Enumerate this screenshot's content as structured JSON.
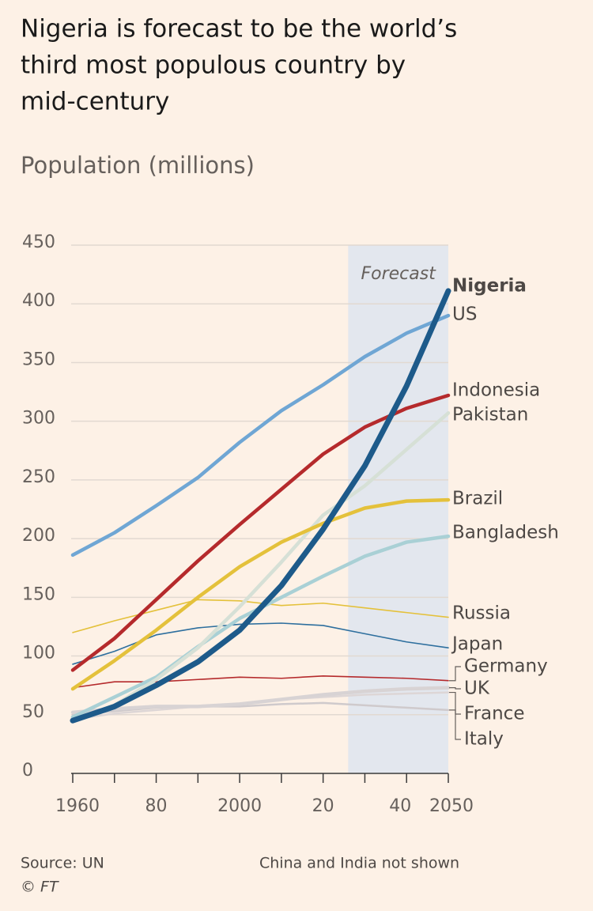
{
  "chart_data": {
    "type": "line",
    "title_lines": [
      "Nigeria is forecast to be the world’s",
      "third most populous country by",
      "mid-century"
    ],
    "subtitle": "Population (millions)",
    "x": [
      1960,
      1970,
      1980,
      1990,
      2000,
      2010,
      2020,
      2030,
      2040,
      2050
    ],
    "series": [
      {
        "name": "Nigeria",
        "color": "#1d5a8a",
        "values": [
          45,
          57,
          75,
          95,
          122,
          160,
          208,
          262,
          330,
          411
        ]
      },
      {
        "name": "US",
        "color": "#6fa6d4",
        "values": [
          186,
          205,
          228,
          252,
          282,
          309,
          331,
          355,
          375,
          390
        ]
      },
      {
        "name": "Indonesia",
        "color": "#b52a2c",
        "values": [
          88,
          115,
          148,
          181,
          212,
          242,
          272,
          295,
          311,
          322
        ]
      },
      {
        "name": "Pakistan",
        "color": "#d6e0d6",
        "values": [
          45,
          58,
          80,
          107,
          142,
          180,
          220,
          245,
          276,
          307
        ]
      },
      {
        "name": "Brazil",
        "color": "#e4c13b",
        "values": [
          72,
          96,
          122,
          150,
          176,
          197,
          213,
          226,
          232,
          233
        ]
      },
      {
        "name": "Bangladesh",
        "color": "#a9d0d5",
        "values": [
          48,
          65,
          82,
          108,
          132,
          150,
          168,
          185,
          197,
          202
        ]
      },
      {
        "name": "Russia",
        "color": "#e4c13b",
        "values": [
          120,
          130,
          139,
          148,
          147,
          143,
          145,
          141,
          137,
          133
        ]
      },
      {
        "name": "Japan",
        "color": "#2e6f9e",
        "values": [
          93,
          104,
          118,
          124,
          127,
          128,
          126,
          119,
          112,
          107
        ]
      },
      {
        "name": "Germany",
        "color": "#b52a2c",
        "values": [
          73,
          78,
          78,
          80,
          82,
          81,
          83,
          82,
          81,
          79
        ]
      },
      {
        "name": "UK",
        "color": "#d8d3d4",
        "values": [
          52,
          55,
          57,
          57,
          59,
          63,
          67,
          70,
          72,
          73
        ]
      },
      {
        "name": "France",
        "color": "#ddd6d6",
        "values": [
          46,
          51,
          54,
          57,
          59,
          63,
          65,
          67,
          68,
          69
        ]
      },
      {
        "name": "Italy",
        "color": "#cfcacc",
        "values": [
          50,
          53,
          56,
          57,
          57,
          59,
          60,
          58,
          56,
          54
        ]
      }
    ],
    "forecast": {
      "label": "Forecast",
      "start": 2026
    },
    "xlim": [
      1960,
      2050
    ],
    "xticks": [
      1960,
      {
        "value": 1980,
        "label": "80"
      },
      2000,
      {
        "value": 2020,
        "label": "20"
      },
      {
        "value": 2040,
        "label": "40"
      },
      2050
    ],
    "xminorticks": [
      1970,
      1990,
      2010,
      2030
    ],
    "ylim": [
      0,
      450
    ],
    "yticks": [
      0,
      50,
      100,
      150,
      200,
      250,
      300,
      350,
      400,
      450
    ],
    "grid": true,
    "source": "Source: UN",
    "credit": "© FT",
    "note": "China and India not shown"
  }
}
